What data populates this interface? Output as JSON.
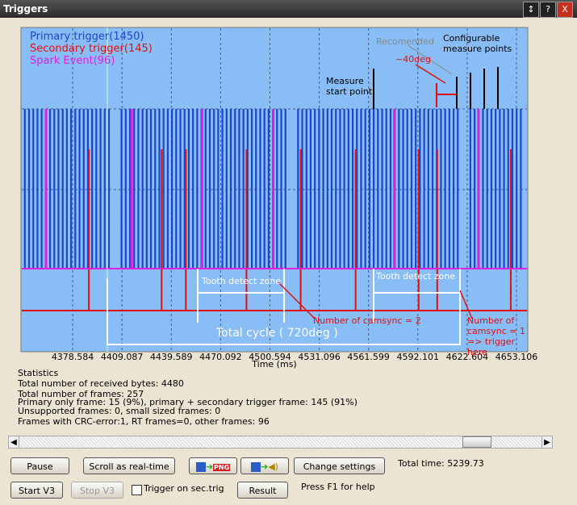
{
  "window": {
    "title": "Triggers"
  },
  "chart_data": {
    "type": "pulse",
    "x_label": "Time (ms)",
    "xlim": [
      4347.1,
      4659.6
    ],
    "xticks": [
      4378.584,
      4409.087,
      4439.589,
      4470.092,
      4500.594,
      4531.096,
      4561.599,
      4592.101,
      4622.604,
      4653.106
    ],
    "grid": true,
    "series": [
      {
        "name": "Primary trigger(1450)",
        "color": "#1c46c8",
        "values": [
          4349.0,
          4351.6,
          4354.2,
          4356.8,
          4359.4,
          4362.0,
          4364.6,
          4367.2,
          4369.8,
          4372.4,
          4375.0,
          4377.6,
          4380.2,
          4382.8,
          4385.4,
          4388.0,
          4390.6,
          4393.2,
          4395.8,
          4398.4,
          4401.0,
          4408.8,
          4411.4,
          4414.0,
          4416.6,
          4419.2,
          4421.8,
          4424.4,
          4427.0,
          4429.6,
          4432.2,
          4434.8,
          4437.4,
          4440.0,
          4442.6,
          4445.2,
          4447.8,
          4450.4,
          4453.0,
          4455.6,
          4458.2,
          4460.8,
          4463.4,
          4466.0,
          4468.6,
          4471.2,
          4473.8,
          4476.4,
          4479.0,
          4481.6,
          4484.2,
          4486.8,
          4489.4,
          4492.0,
          4494.6,
          4497.2,
          4499.8,
          4502.4,
          4505.0,
          4507.6,
          4510.2,
          4518.0,
          4520.6,
          4523.2,
          4525.8,
          4528.4,
          4531.0,
          4533.6,
          4536.2,
          4538.8,
          4541.4,
          4544.0,
          4546.6,
          4549.2,
          4551.8,
          4554.4,
          4557.0,
          4559.6,
          4562.2,
          4564.8,
          4567.4,
          4570.0,
          4572.6,
          4575.2,
          4577.8,
          4580.4,
          4583.0,
          4585.6,
          4588.2,
          4590.8,
          4593.4,
          4596.0,
          4598.6,
          4601.2,
          4603.8,
          4606.4,
          4609.0,
          4611.6,
          4614.2,
          4616.8,
          4624.6,
          4627.2,
          4629.8,
          4632.4,
          4635.0,
          4637.6,
          4640.2,
          4642.8,
          4645.4,
          4648.0,
          4650.6,
          4653.2,
          4655.8
        ]
      },
      {
        "name": "Secondary trigger(145)",
        "color": "#e01010",
        "values": [
          4388.6,
          4433.6,
          4448.6,
          4486.1,
          4519.6,
          4553.6,
          4592.6,
          4604.1,
          4649.6
        ]
      },
      {
        "name": "Spark Event(96)",
        "color": "#e020e0",
        "values": [
          4362.1,
          4415.1,
          4458.6,
          4502.6,
          4577.6,
          4629.6
        ]
      }
    ],
    "annotations": [
      "Recomended",
      "~40deg",
      "Configurable measure points",
      "Measure start point",
      "Tooth detect zone",
      "Tooth detect zone",
      "Number of camsync = 2",
      "Number of camsync = 1 => trigger here",
      "Total cycle ( 720deg )"
    ]
  },
  "statistics": [
    "Statistics",
    "Total number of received bytes: 4480",
    "Total number of frames: 257",
    "Primary only frame: 15 (9%), primary + secondary trigger frame: 145 (91%)",
    "Unsupported frames: 0, small sized frames: 0",
    "Frames with CRC-error:1, RT frames=0, other frames: 96"
  ],
  "controls": {
    "pause": "Pause",
    "scroll": "Scroll as real-time",
    "png": "PNG",
    "change_settings": "Change settings",
    "total_time": "Total time: 5239.73",
    "start": "Start V3",
    "stop": "Stop V3",
    "trigger_sec": "Trigger on sec.trig",
    "result": "Result",
    "help": "Press F1 for help"
  }
}
